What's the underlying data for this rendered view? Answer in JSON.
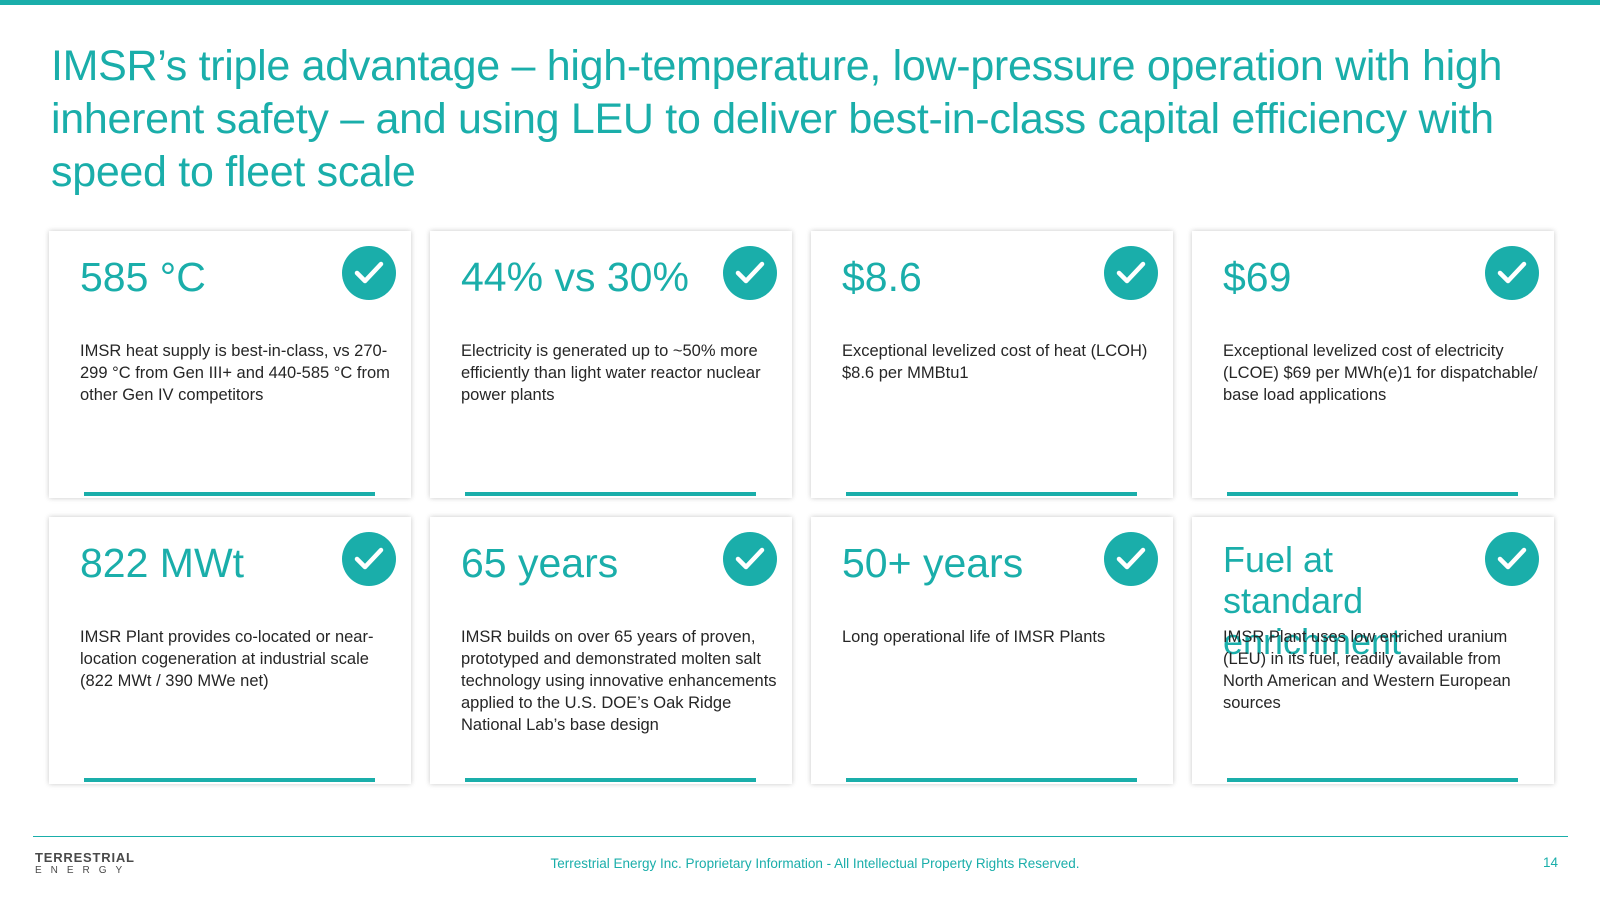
{
  "colors": {
    "accent": "#1aaeaa",
    "text": "#262626"
  },
  "title": "IMSR’s triple advantage – high-temperature, low-pressure operation with high inherent safety – and using LEU to deliver best-in-class capital efficiency with speed to fleet scale",
  "cards": [
    {
      "metric": "585 °C",
      "icon": "checkmark-icon",
      "desc": "IMSR heat supply is best-in-class, vs 270-299 °C from Gen III+ and 440-585 °C from other Gen IV competitors"
    },
    {
      "metric": "44% vs 30%",
      "icon": "checkmark-icon",
      "desc": "Electricity is generated up to ~50% more efficiently than light water reactor nuclear power plants"
    },
    {
      "metric": "$8.6",
      "icon": "checkmark-icon",
      "desc": "Exceptional levelized cost of heat (LCOH) $8.6 per MMBtu1"
    },
    {
      "metric": "$69",
      "icon": "checkmark-icon",
      "desc": "Exceptional levelized cost of electricity (LCOE) $69 per MWh(e)1 for dispatchable/ base load applications"
    },
    {
      "metric": "822 MWt",
      "icon": "checkmark-icon",
      "desc": "IMSR Plant provides co-located or near-location cogeneration at industrial scale (822 MWt / 390 MWe net)"
    },
    {
      "metric": "65 years",
      "icon": "checkmark-icon",
      "desc": "IMSR builds on over 65 years of proven, prototyped and demonstrated molten salt technology using innovative enhancements applied to the U.S. DOE’s Oak Ridge National Lab’s base design"
    },
    {
      "metric": "50+ years",
      "icon": "checkmark-icon",
      "desc": "Long operational life of IMSR Plants"
    },
    {
      "metric": "Fuel at standard enrichment",
      "icon": "checkmark-icon",
      "desc": "IMSR Plant uses low enriched uranium (LEU) in its fuel, readily available from North American and Western European sources"
    }
  ],
  "footer": {
    "logo_line1": "TERRESTRIAL",
    "logo_line2": "ENERGY",
    "text": "Terrestrial Energy Inc. Proprietary Information - All Intellectual Property Rights Reserved.",
    "page_number": "14"
  }
}
